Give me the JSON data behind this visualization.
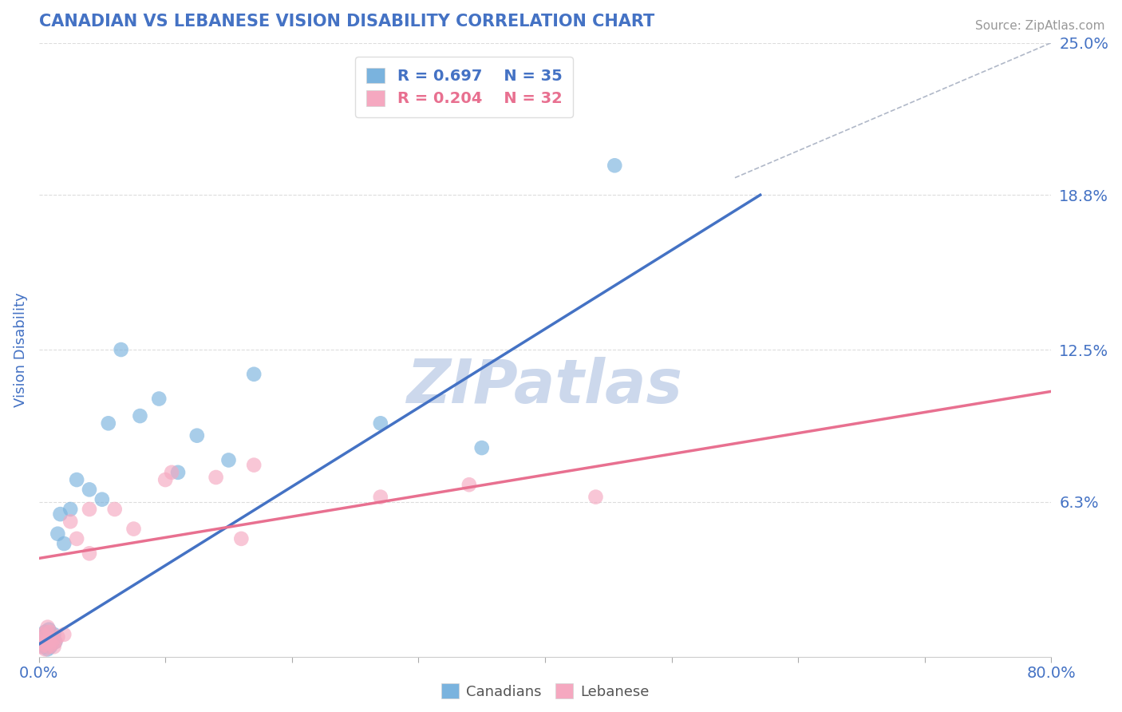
{
  "title": "CANADIAN VS LEBANESE VISION DISABILITY CORRELATION CHART",
  "source": "Source: ZipAtlas.com",
  "ylabel": "Vision Disability",
  "xlim": [
    0.0,
    0.8
  ],
  "ylim": [
    0.0,
    0.25
  ],
  "ytick_vals": [
    0.063,
    0.125,
    0.188,
    0.25
  ],
  "ytick_labels": [
    "6.3%",
    "12.5%",
    "18.8%",
    "25.0%"
  ],
  "xtick_vals": [
    0.0,
    0.1,
    0.2,
    0.3,
    0.4,
    0.5,
    0.6,
    0.7,
    0.8
  ],
  "xtick_major": [
    0.0,
    0.8
  ],
  "xtick_major_labels": [
    "0.0%",
    "80.0%"
  ],
  "canadian_color": "#7ab3de",
  "lebanese_color": "#f5a8c0",
  "blue_line_color": "#4472c4",
  "pink_line_color": "#e87090",
  "ref_line_color": "#b0b8c8",
  "watermark": "ZIPatlas",
  "watermark_color": "#ccd8ec",
  "legend_R_canadian": "R = 0.697",
  "legend_N_canadian": "N = 35",
  "legend_R_lebanese": "R = 0.204",
  "legend_N_lebanese": "N = 32",
  "canadian_x": [
    0.002,
    0.003,
    0.004,
    0.005,
    0.005,
    0.006,
    0.006,
    0.007,
    0.007,
    0.008,
    0.008,
    0.009,
    0.01,
    0.01,
    0.011,
    0.012,
    0.013,
    0.015,
    0.017,
    0.02,
    0.025,
    0.03,
    0.04,
    0.05,
    0.055,
    0.065,
    0.08,
    0.095,
    0.11,
    0.125,
    0.15,
    0.17,
    0.27,
    0.35,
    0.455
  ],
  "canadian_y": [
    0.005,
    0.008,
    0.004,
    0.01,
    0.006,
    0.005,
    0.009,
    0.007,
    0.003,
    0.006,
    0.011,
    0.004,
    0.008,
    0.005,
    0.007,
    0.009,
    0.006,
    0.05,
    0.058,
    0.046,
    0.06,
    0.072,
    0.068,
    0.064,
    0.095,
    0.125,
    0.098,
    0.105,
    0.075,
    0.09,
    0.08,
    0.115,
    0.095,
    0.085,
    0.2
  ],
  "lebanese_x": [
    0.001,
    0.002,
    0.003,
    0.004,
    0.005,
    0.005,
    0.006,
    0.007,
    0.007,
    0.008,
    0.008,
    0.009,
    0.01,
    0.011,
    0.012,
    0.013,
    0.015,
    0.02,
    0.025,
    0.03,
    0.04,
    0.04,
    0.06,
    0.075,
    0.1,
    0.105,
    0.14,
    0.16,
    0.17,
    0.27,
    0.34,
    0.44
  ],
  "lebanese_y": [
    0.006,
    0.004,
    0.009,
    0.005,
    0.008,
    0.003,
    0.01,
    0.006,
    0.012,
    0.004,
    0.007,
    0.01,
    0.005,
    0.007,
    0.004,
    0.006,
    0.008,
    0.009,
    0.055,
    0.048,
    0.06,
    0.042,
    0.06,
    0.052,
    0.072,
    0.075,
    0.073,
    0.048,
    0.078,
    0.065,
    0.07,
    0.065
  ],
  "canadian_line_x": [
    0.0,
    0.57
  ],
  "canadian_line_y": [
    0.005,
    0.188
  ],
  "lebanese_line_x": [
    0.0,
    0.8
  ],
  "lebanese_line_y": [
    0.04,
    0.108
  ],
  "ref_line_x": [
    0.55,
    0.8
  ],
  "ref_line_y": [
    0.195,
    0.25
  ],
  "background_color": "#ffffff",
  "grid_color": "#dddddd",
  "title_color": "#4472c4",
  "axis_color": "#4472c4",
  "tick_color": "#4472c4"
}
